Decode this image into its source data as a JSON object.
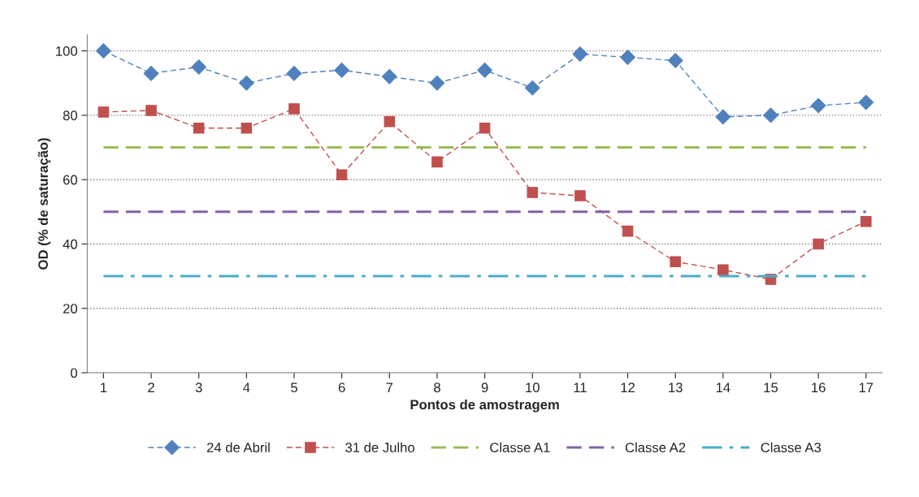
{
  "chart_data": {
    "type": "line",
    "xlabel": "Pontos de amostragem",
    "ylabel": "OD (% de saturação)",
    "categories": [
      "1",
      "2",
      "3",
      "4",
      "5",
      "6",
      "7",
      "8",
      "9",
      "10",
      "11",
      "12",
      "13",
      "14",
      "15",
      "16",
      "17"
    ],
    "series": [
      {
        "name": "24 de Abril",
        "color": "#4f81bd",
        "marker": "diamond",
        "line_style": "dashed",
        "values": [
          100,
          93,
          95,
          90,
          93,
          94,
          92,
          90,
          94,
          88.5,
          99,
          98,
          97,
          79.5,
          80,
          83,
          84
        ]
      },
      {
        "name": "31 de Julho",
        "color": "#c0504d",
        "marker": "square",
        "line_style": "dashed",
        "values": [
          81,
          81.5,
          76,
          76,
          82,
          61.5,
          78,
          65.5,
          76,
          56,
          55,
          44,
          34.5,
          32,
          29,
          40,
          47
        ]
      },
      {
        "name": "Classe A1",
        "color": "#9bbb59",
        "marker": "none",
        "line_style": "dashed",
        "values": [
          70,
          70,
          70,
          70,
          70,
          70,
          70,
          70,
          70,
          70,
          70,
          70,
          70,
          70,
          70,
          70,
          70
        ]
      },
      {
        "name": "Classe A2",
        "color": "#8064a2",
        "marker": "none",
        "line_style": "dashed",
        "values": [
          50,
          50,
          50,
          50,
          50,
          50,
          50,
          50,
          50,
          50,
          50,
          50,
          50,
          50,
          50,
          50,
          50
        ]
      },
      {
        "name": "Classe A3",
        "color": "#4bacc6",
        "marker": "none",
        "line_style": "dashdot",
        "values": [
          30,
          30,
          30,
          30,
          30,
          30,
          30,
          30,
          30,
          30,
          30,
          30,
          30,
          30,
          30,
          30,
          30
        ]
      }
    ],
    "ylim": [
      0,
      105
    ],
    "yticks": [
      0,
      20,
      40,
      60,
      80,
      100
    ],
    "grid": "y",
    "legend": "bottom"
  }
}
